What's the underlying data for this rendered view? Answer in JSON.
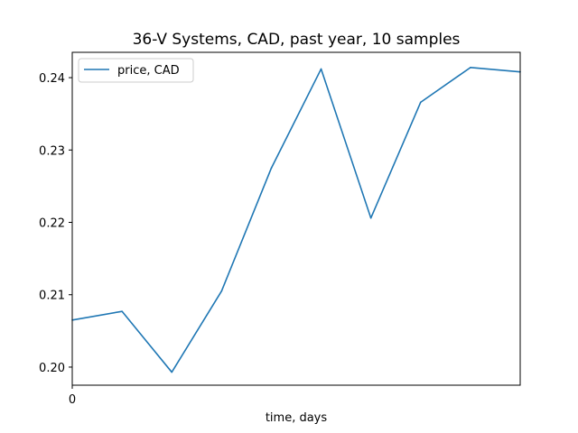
{
  "chart_data": {
    "type": "line",
    "title": "36-V Systems, CAD, past year, 10 samples",
    "xlabel": "time, days",
    "ylabel": "",
    "x": [
      0,
      1,
      2,
      3,
      4,
      5,
      6,
      7,
      8,
      9
    ],
    "series": [
      {
        "name": "price, CAD",
        "color": "#1f77b4",
        "values": [
          0.2065,
          0.2077,
          0.1993,
          0.2105,
          0.2275,
          0.2412,
          0.2206,
          0.2366,
          0.2414,
          0.2408
        ]
      }
    ],
    "xlim": [
      0,
      9
    ],
    "ylim": [
      0.1975,
      0.2435
    ],
    "xticks": [
      0
    ],
    "xtick_labels": [
      "0"
    ],
    "yticks": [
      0.2,
      0.21,
      0.22,
      0.23,
      0.24
    ],
    "ytick_labels": [
      "0.20",
      "0.21",
      "0.22",
      "0.23",
      "0.24"
    ],
    "grid": false,
    "legend": "top-left"
  }
}
